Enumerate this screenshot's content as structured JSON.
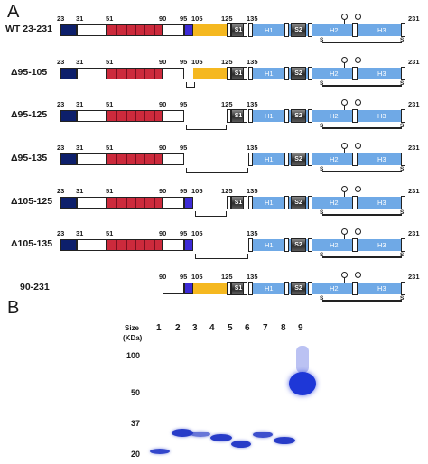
{
  "panelA": {
    "letter": "A",
    "constructs": [
      {
        "label": "WT 23-231",
        "nums": {
          "n23": "23",
          "n31": "31",
          "n51": "51",
          "n90": "90",
          "n95": "95",
          "n105": "105",
          "n125": "125",
          "n135": "135",
          "n231": "231"
        }
      },
      {
        "label": "Δ95-105",
        "nums": {
          "n23": "23",
          "n31": "31",
          "n51": "51",
          "n90": "90",
          "n95": "95",
          "n105": "105",
          "n125": "125",
          "n135": "135",
          "n231": "231"
        }
      },
      {
        "label": "Δ95-125",
        "nums": {
          "n23": "23",
          "n31": "31",
          "n51": "51",
          "n90": "90",
          "n95": "95",
          "n125": "125",
          "n135": "135",
          "n231": "231"
        }
      },
      {
        "label": "Δ95-135",
        "nums": {
          "n23": "23",
          "n31": "31",
          "n51": "51",
          "n90": "90",
          "n95": "95",
          "n135": "135",
          "n231": "231"
        }
      },
      {
        "label": "Δ105-125",
        "nums": {
          "n23": "23",
          "n31": "31",
          "n51": "51",
          "n90": "90",
          "n95": "95",
          "n105": "105",
          "n125": "125",
          "n135": "135",
          "n231": "231"
        }
      },
      {
        "label": "Δ105-135",
        "nums": {
          "n23": "23",
          "n31": "31",
          "n51": "51",
          "n90": "90",
          "n95": "95",
          "n105": "105",
          "n135": "135",
          "n231": "231"
        }
      },
      {
        "label": "90-231",
        "nums": {
          "n90": "90",
          "n95": "95",
          "n105": "105",
          "n125": "125",
          "n135": "135",
          "n231": "231"
        }
      }
    ],
    "domains": {
      "s1": "S1",
      "h1": "H1",
      "s2": "S2",
      "h2": "H2",
      "h3": "H3",
      "ss": "S"
    },
    "colors": {
      "navy": "#0d1f6b",
      "red": "#cc2a3c",
      "blue": "#3d2bd6",
      "yellow": "#f5b820",
      "light_blue": "#6fa9e6"
    }
  },
  "panelB": {
    "letter": "B",
    "size_label": "Size",
    "kda_label": "(KDa)",
    "markers": [
      "100",
      "50",
      "37",
      "20"
    ],
    "lanes": [
      "1",
      "2",
      "3",
      "4",
      "5",
      "6",
      "7",
      "8",
      "9"
    ]
  }
}
